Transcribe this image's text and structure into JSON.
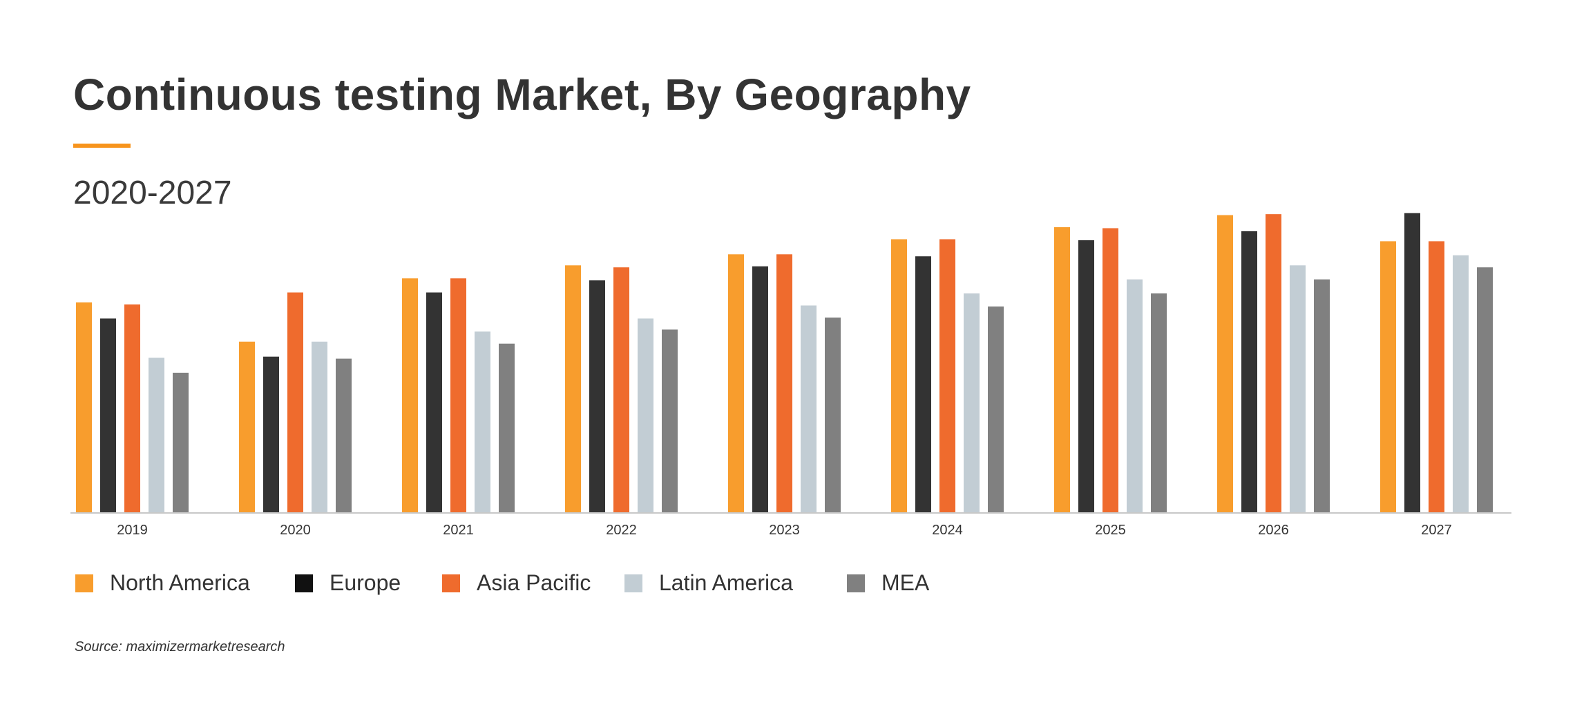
{
  "title": "Continuous testing Market, By Geography",
  "subtitle": "2020-2027",
  "source": "Source: maximizermarketresearch",
  "chart_data": {
    "type": "bar",
    "title": "Continuous testing Market, By Geography",
    "subtitle": "2020-2027",
    "xlabel": "",
    "ylabel": "",
    "ylim": [
      0,
      300
    ],
    "grid": false,
    "legend_position": "bottom-left",
    "categories": [
      "2019",
      "2020",
      "2021",
      "2022",
      "2023",
      "2024",
      "2025",
      "2026",
      "2027"
    ],
    "series": [
      {
        "name": "North America",
        "color": "#F89D2D",
        "values": [
          209,
          170,
          233,
          246,
          257,
          272,
          284,
          296,
          270
        ]
      },
      {
        "name": "Europe",
        "color": "#333333",
        "legend_color": "#111111",
        "values": [
          193,
          155,
          219,
          231,
          245,
          255,
          271,
          280,
          298
        ]
      },
      {
        "name": "Asia Pacific",
        "color": "#EF6B2D",
        "values": [
          207,
          219,
          233,
          244,
          257,
          272,
          283,
          297,
          270
        ]
      },
      {
        "name": "Latin America",
        "color": "#C2CDD4",
        "values": [
          154,
          170,
          180,
          193,
          206,
          218,
          232,
          246,
          256
        ]
      },
      {
        "name": "MEA",
        "color": "#808080",
        "values": [
          139,
          153,
          168,
          182,
          194,
          205,
          218,
          232,
          244
        ]
      }
    ]
  }
}
